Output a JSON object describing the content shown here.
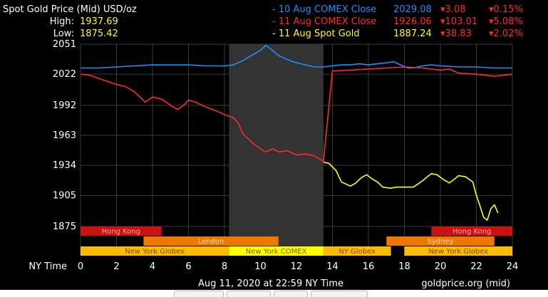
{
  "header": {
    "title": "Spot Gold Price (Mid) USD/oz",
    "high_label": "High:",
    "high_value": "1937.69",
    "low_label": "Low:",
    "low_value": "1875.42"
  },
  "legend": [
    {
      "label": "- 10 Aug COMEX Close",
      "price": "2029.08",
      "change": "▾3.08",
      "pct": "▾0.15%",
      "color": "#1e8fff"
    },
    {
      "label": "- 11 Aug COMEX Close",
      "price": "1926.06",
      "change": "▾103.01",
      "pct": "▾5.08%",
      "color": "#ff2a2a"
    },
    {
      "label": "- 11 Aug Spot Gold",
      "price": "1887.24",
      "change": "▾38.83",
      "pct": "▾2.02%",
      "color": "#ffff00"
    }
  ],
  "footer": {
    "x_axis_caption": "NY Time",
    "timestamp": "Aug 11, 2020 at 22:59 NY Time",
    "source": "goldprice.org (mid)"
  },
  "sessions": [
    {
      "name": "Hong Kong",
      "row": 0,
      "start": 0,
      "end": 4.5,
      "color": "#cc1111",
      "text_color": "#ffaaaa"
    },
    {
      "name": "Hong Kong",
      "row": 0,
      "start": 19.5,
      "end": 24,
      "color": "#cc1111",
      "text_color": "#ffaaaa"
    },
    {
      "name": "London",
      "row": 1,
      "start": 3.5,
      "end": 11,
      "color": "#ee7700",
      "text_color": "#ffe0b0"
    },
    {
      "name": "Sydney",
      "row": 1,
      "start": 17,
      "end": 23,
      "color": "#ee7700",
      "text_color": "#ffe0b0"
    },
    {
      "name": "New York Globex",
      "row": 2,
      "start": 0,
      "end": 8.25,
      "color": "#ffbb00",
      "text_color": "#7a4a00"
    },
    {
      "name": "New York COMEX",
      "row": 2,
      "start": 8.25,
      "end": 13.5,
      "color": "#ffff00",
      "text_color": "#7a5a00"
    },
    {
      "name": "NY Globex",
      "row": 2,
      "start": 13.5,
      "end": 17.25,
      "color": "#ffbb00",
      "text_color": "#7a4a00"
    },
    {
      "name": "New York Globex",
      "row": 2,
      "start": 18,
      "end": 24,
      "color": "#ffbb00",
      "text_color": "#7a4a00"
    }
  ],
  "chart_data": {
    "type": "line",
    "xlabel": "NY Time",
    "ylabel": "",
    "xlim": [
      0,
      24
    ],
    "ylim": [
      1875,
      2051
    ],
    "xticks": [
      0,
      2,
      4,
      6,
      8,
      10,
      12,
      14,
      16,
      18,
      20,
      22,
      24
    ],
    "yticks": [
      1875,
      1905,
      1934,
      1963,
      1992,
      2022,
      2051
    ],
    "grid": true,
    "highlight_region": [
      8.25,
      13.5
    ],
    "series": [
      {
        "name": "10 Aug COMEX Close",
        "color": "#1e8fff",
        "points": [
          [
            0,
            2028
          ],
          [
            1,
            2028
          ],
          [
            2,
            2029
          ],
          [
            3,
            2030
          ],
          [
            4,
            2031
          ],
          [
            5,
            2031
          ],
          [
            6,
            2031
          ],
          [
            7,
            2030
          ],
          [
            8,
            2030
          ],
          [
            8.5,
            2031
          ],
          [
            9,
            2035
          ],
          [
            9.5,
            2040
          ],
          [
            10,
            2045
          ],
          [
            10.3,
            2050
          ],
          [
            10.6,
            2046
          ],
          [
            11,
            2040
          ],
          [
            11.5,
            2036
          ],
          [
            12,
            2033
          ],
          [
            12.5,
            2031
          ],
          [
            13,
            2029
          ],
          [
            13.5,
            2029
          ],
          [
            14,
            2030
          ],
          [
            14.5,
            2031
          ],
          [
            15,
            2031
          ],
          [
            15.5,
            2032
          ],
          [
            16,
            2031
          ],
          [
            16.5,
            2032
          ],
          [
            17,
            2033
          ],
          [
            17.4,
            2034
          ],
          [
            17.9,
            2030
          ],
          [
            18.2,
            2028
          ],
          [
            18.5,
            2028
          ],
          [
            19,
            2030
          ],
          [
            19.5,
            2031
          ],
          [
            20,
            2030
          ],
          [
            21,
            2029
          ],
          [
            22,
            2029
          ],
          [
            23,
            2028
          ],
          [
            24,
            2028
          ]
        ]
      },
      {
        "name": "11 Aug COMEX Close",
        "color": "#ff2a2a",
        "points": [
          [
            0,
            2022
          ],
          [
            0.5,
            2021
          ],
          [
            1,
            2018
          ],
          [
            1.5,
            2015
          ],
          [
            2,
            2012
          ],
          [
            2.5,
            2010
          ],
          [
            3,
            2005
          ],
          [
            3.3,
            2000
          ],
          [
            3.6,
            1995
          ],
          [
            4,
            2000
          ],
          [
            4.5,
            1998
          ],
          [
            5,
            1992
          ],
          [
            5.4,
            1988
          ],
          [
            5.8,
            1993
          ],
          [
            6,
            1997
          ],
          [
            6.4,
            1995
          ],
          [
            7,
            1990
          ],
          [
            7.5,
            1987
          ],
          [
            8,
            1983
          ],
          [
            8.5,
            1980
          ],
          [
            8.8,
            1974
          ],
          [
            9,
            1965
          ],
          [
            9.3,
            1960
          ],
          [
            9.6,
            1955
          ],
          [
            10,
            1950
          ],
          [
            10.3,
            1947
          ],
          [
            10.7,
            1950
          ],
          [
            11,
            1947
          ],
          [
            11.5,
            1948
          ],
          [
            12,
            1944
          ],
          [
            12.5,
            1945
          ],
          [
            13,
            1943
          ],
          [
            13.5,
            1938
          ],
          [
            14,
            2025
          ],
          [
            15,
            2026
          ],
          [
            16,
            2027
          ],
          [
            17,
            2028
          ],
          [
            18,
            2029
          ],
          [
            19,
            2028
          ],
          [
            20,
            2026
          ],
          [
            20.5,
            2027
          ],
          [
            21,
            2023
          ],
          [
            22,
            2022
          ],
          [
            23,
            2020
          ],
          [
            24,
            2022
          ]
        ]
      },
      {
        "name": "11 Aug Spot Gold",
        "color": "#ffff00",
        "points": [
          [
            13.5,
            1937
          ],
          [
            13.8,
            1936
          ],
          [
            14.2,
            1929
          ],
          [
            14.5,
            1918
          ],
          [
            15,
            1914
          ],
          [
            15.3,
            1917
          ],
          [
            15.6,
            1922
          ],
          [
            15.9,
            1925
          ],
          [
            16.2,
            1921
          ],
          [
            16.5,
            1918
          ],
          [
            16.8,
            1913
          ],
          [
            17.2,
            1912
          ],
          [
            17.6,
            1913
          ],
          [
            18,
            1913
          ],
          [
            18.5,
            1913
          ],
          [
            19,
            1919
          ],
          [
            19.2,
            1922
          ],
          [
            19.5,
            1926
          ],
          [
            19.8,
            1925
          ],
          [
            20.2,
            1920
          ],
          [
            20.5,
            1917
          ],
          [
            20.8,
            1921
          ],
          [
            21,
            1924
          ],
          [
            21.4,
            1923
          ],
          [
            21.8,
            1918
          ],
          [
            22,
            1905
          ],
          [
            22.2,
            1895
          ],
          [
            22.4,
            1884
          ],
          [
            22.6,
            1881
          ],
          [
            22.8,
            1892
          ],
          [
            23,
            1896
          ],
          [
            23.2,
            1888
          ]
        ]
      }
    ]
  }
}
